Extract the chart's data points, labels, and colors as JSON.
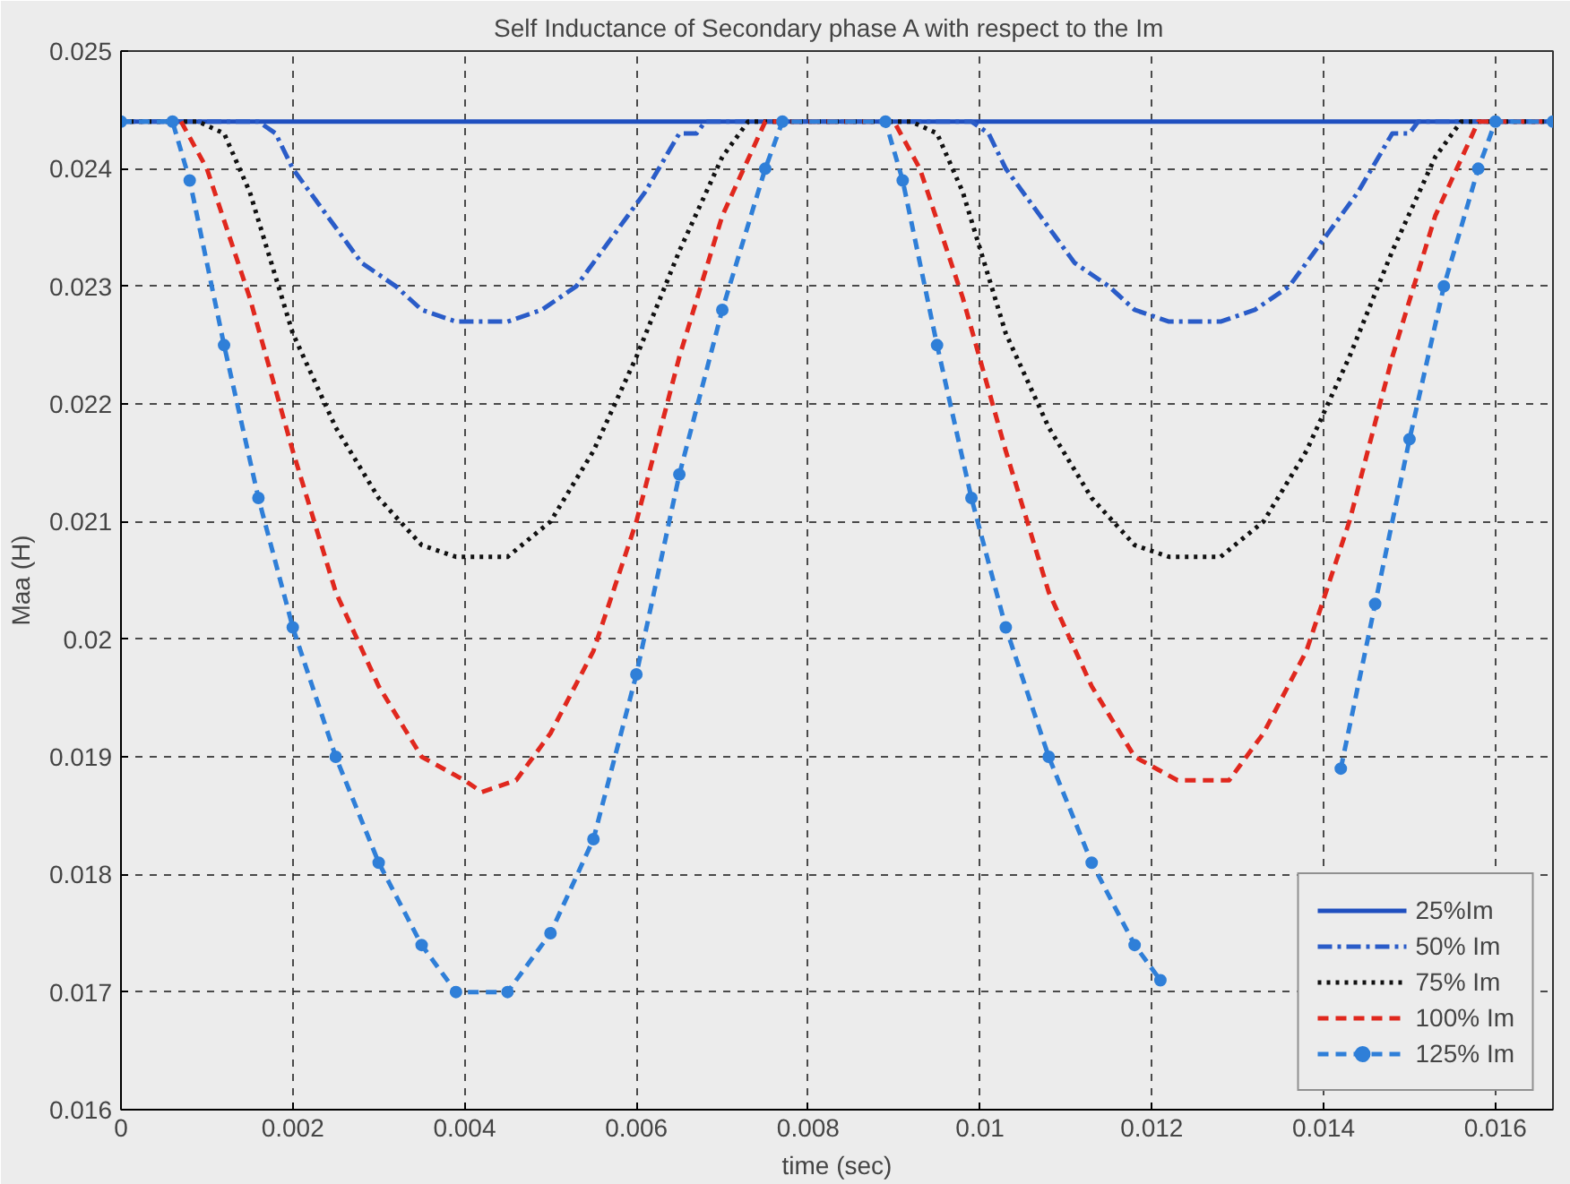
{
  "chart_data": {
    "type": "line",
    "title": "Self Inductance of Secondary  phase A  with respect to the Im",
    "xlabel": "time (sec)",
    "ylabel": "Maa (H)",
    "xlim": [
      0,
      0.01667
    ],
    "ylim": [
      0.016,
      0.025
    ],
    "xticks": [
      0,
      0.002,
      0.004,
      0.006,
      0.008,
      0.01,
      0.012,
      0.014,
      0.016
    ],
    "yticks": [
      0.016,
      0.017,
      0.018,
      0.019,
      0.02,
      0.021,
      0.022,
      0.023,
      0.024,
      0.025
    ],
    "grid": true,
    "legend": "bottom right",
    "series": [
      {
        "name": "25%Im",
        "color": "#1f4fbf",
        "line_style": "solid",
        "marker": "none",
        "x": [
          0,
          0.01667
        ],
        "values": [
          0.0244,
          0.0244
        ]
      },
      {
        "name": "50% Im",
        "color": "#2a5cc8",
        "line_style": "dashdot",
        "marker": "none",
        "x": [
          0,
          0.0016,
          0.0018,
          0.002,
          0.0024,
          0.0028,
          0.0032,
          0.0035,
          0.0039,
          0.0045,
          0.0049,
          0.0053,
          0.0057,
          0.0061,
          0.0065,
          0.0067,
          0.0068,
          0.0099,
          0.0101,
          0.0103,
          0.0107,
          0.0111,
          0.0115,
          0.0118,
          0.0122,
          0.0128,
          0.0132,
          0.0136,
          0.014,
          0.0144,
          0.0148,
          0.015,
          0.0151,
          0.01667
        ],
        "values": [
          0.0244,
          0.0244,
          0.0243,
          0.024,
          0.0236,
          0.0232,
          0.023,
          0.0228,
          0.0227,
          0.0227,
          0.0228,
          0.023,
          0.0234,
          0.0238,
          0.0243,
          0.0243,
          0.0244,
          0.0244,
          0.0243,
          0.024,
          0.0236,
          0.0232,
          0.023,
          0.0228,
          0.0227,
          0.0227,
          0.0228,
          0.023,
          0.0234,
          0.0238,
          0.0243,
          0.0243,
          0.0244,
          0.0244
        ]
      },
      {
        "name": "75% Im",
        "color": "#111111",
        "line_style": "dotted",
        "marker": "none",
        "x": [
          0,
          0.0009,
          0.0012,
          0.0015,
          0.002,
          0.0025,
          0.003,
          0.0035,
          0.0039,
          0.0045,
          0.005,
          0.0055,
          0.006,
          0.0065,
          0.007,
          0.0073,
          0.0092,
          0.0095,
          0.0098,
          0.0103,
          0.0108,
          0.0113,
          0.0118,
          0.0122,
          0.0128,
          0.0133,
          0.0138,
          0.0143,
          0.0148,
          0.0153,
          0.0156,
          0.01667
        ],
        "values": [
          0.0244,
          0.0244,
          0.0243,
          0.0238,
          0.0226,
          0.0218,
          0.0212,
          0.0208,
          0.0207,
          0.0207,
          0.021,
          0.0216,
          0.0224,
          0.0233,
          0.0241,
          0.0244,
          0.0244,
          0.0243,
          0.0238,
          0.0226,
          0.0218,
          0.0212,
          0.0208,
          0.0207,
          0.0207,
          0.021,
          0.0216,
          0.0224,
          0.0233,
          0.0241,
          0.0244,
          0.0244
        ]
      },
      {
        "name": "100% Im",
        "color": "#e0281e",
        "line_style": "dashed",
        "marker": "none",
        "x": [
          0.0007,
          0.001,
          0.0015,
          0.002,
          0.0025,
          0.003,
          0.0035,
          0.004,
          0.0042,
          0.0046,
          0.005,
          0.0055,
          0.006,
          0.0065,
          0.007,
          0.0075,
          0.009,
          0.0093,
          0.0098,
          0.0103,
          0.0108,
          0.0113,
          0.0118,
          0.0123,
          0.0125,
          0.0129,
          0.0133,
          0.0138,
          0.0143,
          0.0148,
          0.0153,
          0.0158,
          0.01667
        ],
        "values": [
          0.0244,
          0.024,
          0.0229,
          0.0216,
          0.0204,
          0.0196,
          0.019,
          0.0188,
          0.0187,
          0.0188,
          0.0192,
          0.0199,
          0.021,
          0.0224,
          0.0236,
          0.0244,
          0.0244,
          0.024,
          0.0229,
          0.0216,
          0.0204,
          0.0196,
          0.019,
          0.0188,
          0.0188,
          0.0188,
          0.0192,
          0.0199,
          0.021,
          0.0224,
          0.0236,
          0.0244,
          0.0244
        ]
      },
      {
        "name": "125% Im",
        "color": "#2f7fd8",
        "line_style": "dashed",
        "marker": "circle",
        "x": [
          0,
          0.0006,
          0.0008,
          0.0012,
          0.0016,
          0.002,
          0.0025,
          0.003,
          0.0035,
          0.0039,
          0.0045,
          0.005,
          0.0055,
          0.006,
          0.0065,
          0.007,
          0.0075,
          0.0077,
          0.0089,
          0.0091,
          0.0095,
          0.0099,
          0.0103,
          0.0108,
          0.0113,
          0.0118,
          0.0121,
          0.0128,
          0.0142,
          0.0146,
          0.015,
          0.0154,
          0.0158,
          0.016,
          0.01667
        ],
        "values": [
          0.0244,
          0.0244,
          0.0239,
          0.0225,
          0.0212,
          0.0201,
          0.019,
          0.0181,
          0.0174,
          0.017,
          0.017,
          0.0175,
          0.0183,
          0.0197,
          0.0214,
          0.0228,
          0.024,
          0.0244,
          0.0244,
          0.0239,
          0.0225,
          0.0212,
          0.0201,
          0.019,
          0.0181,
          0.0174,
          0.0171,
          null,
          0.0189,
          0.0203,
          0.0217,
          0.023,
          0.024,
          0.0244,
          0.0244
        ]
      }
    ]
  }
}
